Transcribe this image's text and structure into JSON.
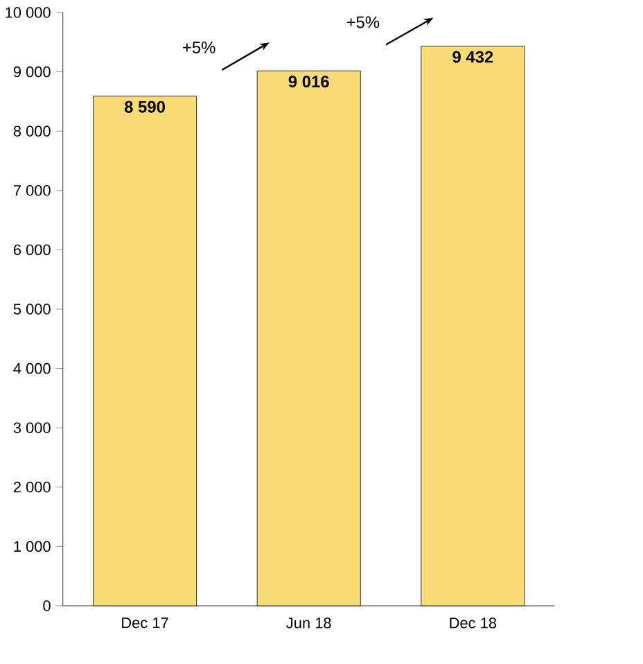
{
  "chart_data": {
    "type": "bar",
    "categories": [
      "Dec 17",
      "Jun 18",
      "Dec 18"
    ],
    "values": [
      8590,
      9016,
      9432
    ],
    "value_labels": [
      "8 590",
      "9 016",
      "9 432"
    ],
    "color": "#f9dc78",
    "ylim": [
      0,
      10000
    ],
    "yticks": [
      {
        "value": 0,
        "label": "0"
      },
      {
        "value": 1000,
        "label": "1 000"
      },
      {
        "value": 2000,
        "label": "2 000"
      },
      {
        "value": 3000,
        "label": "3 000"
      },
      {
        "value": 4000,
        "label": "4 000"
      },
      {
        "value": 5000,
        "label": "5 000"
      },
      {
        "value": 6000,
        "label": "6 000"
      },
      {
        "value": 7000,
        "label": "7 000"
      },
      {
        "value": 8000,
        "label": "8 000"
      },
      {
        "value": 9000,
        "label": "9 000"
      },
      {
        "value": 10000,
        "label": "10 000"
      }
    ],
    "annotations": [
      "+5%",
      "+5%"
    ]
  }
}
